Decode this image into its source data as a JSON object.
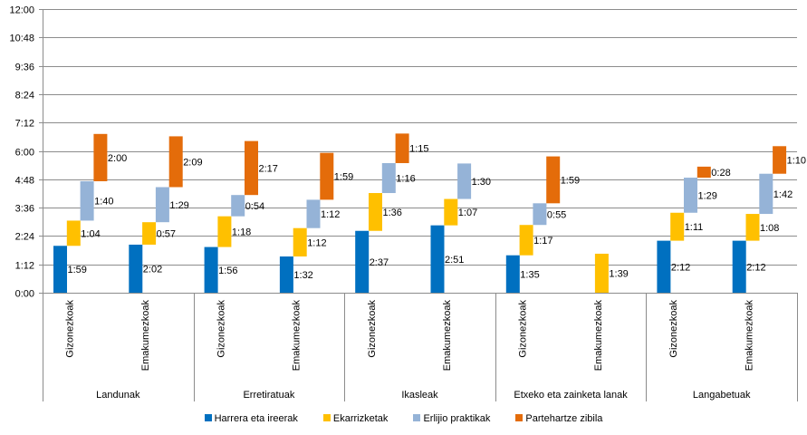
{
  "chart_data": {
    "type": "bar",
    "subtype": "floating-stacked (waterfall per category)",
    "title": "",
    "xlabel": "",
    "ylabel": "",
    "y_unit": "h:mm",
    "ylim_minutes": [
      0,
      720
    ],
    "y_ticks": [
      "0:00",
      "1:12",
      "2:24",
      "3:36",
      "4:48",
      "6:00",
      "7:12",
      "8:24",
      "9:36",
      "10:48",
      "12:00"
    ],
    "grid": true,
    "legend_position": "bottom",
    "series": [
      {
        "name": "Harrera eta ireerak",
        "color": "#0070C0"
      },
      {
        "name": "Ekarrizketak",
        "color": "#FFC000"
      },
      {
        "name": "Erlijio praktikak",
        "color": "#95B3D7"
      },
      {
        "name": "Partehartze zibila",
        "color": "#E46C0A"
      }
    ],
    "groups": [
      {
        "name": "Landunak",
        "categories": [
          {
            "name": "Gizonezkoak",
            "values": [
              "1:59",
              "1:04",
              "1:40",
              "2:00"
            ]
          },
          {
            "name": "Emakumezkoak",
            "values": [
              "2:02",
              "0:57",
              "1:29",
              "2:09"
            ]
          }
        ]
      },
      {
        "name": "Erretiratuak",
        "categories": [
          {
            "name": "Gizonezkoak",
            "values": [
              "1:56",
              "1:18",
              "0:54",
              "2:17"
            ]
          },
          {
            "name": "Emakumezkoak",
            "values": [
              "1:32",
              "1:12",
              "1:12",
              "1:59"
            ]
          }
        ]
      },
      {
        "name": "Ikasleak",
        "categories": [
          {
            "name": "Gizonezkoak",
            "values": [
              "2:37",
              "1:36",
              "1:16",
              "1:15"
            ]
          },
          {
            "name": "Emakumezkoak",
            "values": [
              "2:51",
              "1:07",
              "1:30",
              null
            ]
          }
        ]
      },
      {
        "name": "Etxeko eta zainketa lanak",
        "categories": [
          {
            "name": "Gizonezkoak",
            "values": [
              "1:35",
              "1:17",
              "0:55",
              "1:59"
            ]
          },
          {
            "name": "Emakumezkoak",
            "values": [
              null,
              "1:39",
              null,
              null
            ]
          }
        ]
      },
      {
        "name": "Langabetuak",
        "categories": [
          {
            "name": "Gizonezkoak",
            "values": [
              "2:12",
              "1:11",
              "1:29",
              "0:28"
            ]
          },
          {
            "name": "Emakumezkoak",
            "values": [
              "2:12",
              "1:08",
              "1:42",
              "1:10"
            ]
          }
        ]
      }
    ]
  }
}
